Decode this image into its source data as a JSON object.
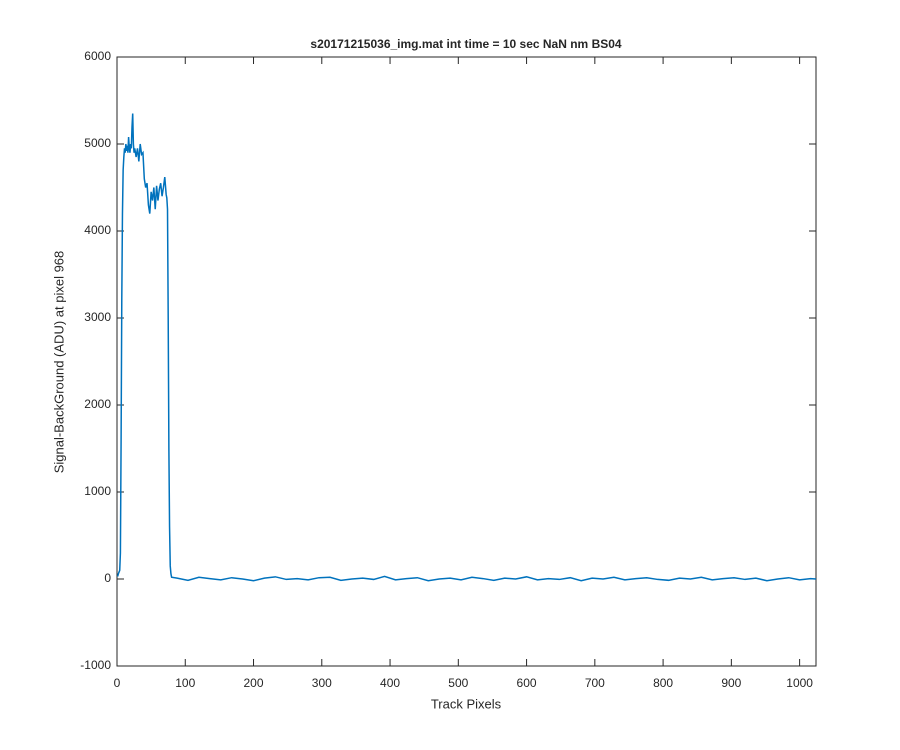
{
  "chart_data": {
    "type": "line",
    "title": "s20171215036_img.mat int time = 10 sec  NaN nm BS04",
    "xlabel": "Track Pixels",
    "ylabel": "Signal-BackGround (ADU) at pixel 968",
    "x": [
      1,
      2,
      3,
      4,
      5,
      6,
      7,
      8,
      9,
      10,
      11,
      12,
      13,
      14,
      15,
      16,
      17,
      18,
      19,
      20,
      21,
      22,
      23,
      24,
      25,
      26,
      28,
      30,
      32,
      34,
      36,
      38,
      40,
      42,
      44,
      46,
      48,
      50,
      52,
      54,
      56,
      58,
      60,
      62,
      64,
      66,
      68,
      70,
      72,
      73,
      74,
      75,
      76,
      77,
      78,
      79,
      80,
      88,
      104,
      120,
      136,
      152,
      168,
      184,
      200,
      216,
      232,
      248,
      264,
      280,
      296,
      312,
      328,
      344,
      360,
      376,
      392,
      408,
      424,
      440,
      456,
      472,
      488,
      504,
      520,
      536,
      552,
      568,
      584,
      600,
      616,
      632,
      648,
      664,
      680,
      696,
      712,
      728,
      744,
      760,
      776,
      792,
      808,
      824,
      840,
      856,
      872,
      888,
      904,
      920,
      936,
      952,
      968,
      984,
      1000,
      1016,
      1024
    ],
    "values": [
      30,
      60,
      80,
      100,
      300,
      1600,
      3200,
      4200,
      4700,
      4850,
      4950,
      4900,
      5000,
      4920,
      4980,
      4900,
      5080,
      4950,
      4900,
      5000,
      4950,
      5200,
      5350,
      5000,
      4900,
      4950,
      4850,
      4950,
      4800,
      5000,
      4880,
      4900,
      4600,
      4500,
      4550,
      4300,
      4200,
      4450,
      4350,
      4500,
      4250,
      4520,
      4350,
      4480,
      4550,
      4400,
      4500,
      4620,
      4420,
      4380,
      4250,
      3000,
      1500,
      600,
      150,
      60,
      20,
      10,
      -15,
      20,
      5,
      -10,
      15,
      0,
      -20,
      10,
      25,
      -5,
      5,
      -10,
      15,
      20,
      -15,
      0,
      10,
      -5,
      30,
      -10,
      5,
      15,
      -20,
      0,
      10,
      -10,
      20,
      5,
      -15,
      10,
      0,
      25,
      -10,
      5,
      -5,
      15,
      -20,
      10,
      0,
      20,
      -10,
      5,
      15,
      -5,
      -15,
      10,
      0,
      20,
      -10,
      5,
      15,
      -5,
      10,
      -20,
      0,
      15,
      -10,
      5,
      0
    ],
    "color": "#0072bd",
    "xlim": [
      0,
      1024
    ],
    "xticks": [
      0,
      100,
      200,
      300,
      400,
      500,
      600,
      700,
      800,
      900,
      1000
    ],
    "ylim": [
      -1000,
      6000
    ],
    "yticks": [
      -1000,
      0,
      1000,
      2000,
      3000,
      4000,
      5000,
      6000
    ]
  }
}
